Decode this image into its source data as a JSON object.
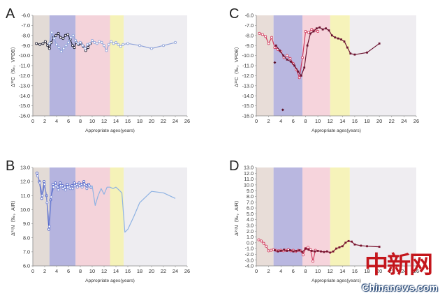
{
  "watermark": {
    "chinese": "中新网",
    "site": "Chinanews.com"
  },
  "chart_data": [
    {
      "panel": "A",
      "type": "line",
      "xlabel": "Appropriate ages(years)",
      "ylabel": "Δ¹³C（‰，VPDB）",
      "xlim": [
        0,
        26
      ],
      "ylim": [
        -16,
        -6
      ],
      "xticks": [
        0,
        2,
        4,
        6,
        8,
        10,
        12,
        14,
        16,
        18,
        20,
        22,
        24,
        26
      ],
      "yticks": [
        -16,
        -15,
        -14,
        -13,
        -12,
        -11,
        -10,
        -9,
        -8,
        -7,
        -6
      ],
      "bands": [
        {
          "x0": 0,
          "x1": 2.8,
          "color": "#e3dbd6"
        },
        {
          "x0": 2.8,
          "x1": 7.2,
          "color": "#b5b4df"
        },
        {
          "x0": 7.2,
          "x1": 13,
          "color": "#f4d3da"
        },
        {
          "x0": 13,
          "x1": 15.3,
          "color": "#f5f2b8"
        },
        {
          "x0": 15.3,
          "x1": 26,
          "color": "#eeedf1"
        }
      ],
      "series": [
        {
          "color": "#1a1a2e",
          "marker": "o",
          "x": [
            0.6,
            1.2,
            1.7,
            2.1,
            2.5,
            2.8,
            3.1,
            3.5,
            3.9,
            4.3,
            4.7,
            5.1,
            5.5,
            5.9,
            6.3,
            6.7,
            7.0,
            7.3,
            7.7,
            8.1,
            8.5,
            8.9,
            9.3,
            9.7
          ],
          "y": [
            -8.8,
            -8.9,
            -8.8,
            -8.6,
            -9.0,
            -9.3,
            -8.7,
            -8.2,
            -8.0,
            -7.8,
            -8.2,
            -8.3,
            -8.0,
            -7.9,
            -8.4,
            -9.0,
            -9.2,
            -8.7,
            -8.9,
            -8.8,
            -9.1,
            -9.5,
            -9.2,
            -8.8
          ]
        },
        {
          "color": "#8fa3d9",
          "marker": "o",
          "x": [
            2.8,
            3.2,
            3.6,
            4.0,
            4.4,
            4.8,
            5.2,
            5.6,
            6.0,
            6.4,
            6.8,
            7.2,
            7.6,
            8.0,
            8.4,
            8.8,
            9.2,
            9.6,
            10.0,
            10.4,
            10.8,
            11.2,
            11.6,
            12.0,
            12.4,
            12.8,
            13.2,
            13.6,
            14.0,
            14.4,
            14.8,
            15.2,
            16,
            18,
            20,
            22,
            24
          ],
          "y": [
            -8.8,
            -7.7,
            -8.3,
            -8.9,
            -9.2,
            -9.6,
            -9.3,
            -9.0,
            -8.7,
            -8.2,
            -8.0,
            -8.5,
            -8.8,
            -8.7,
            -9.0,
            -9.3,
            -8.9,
            -8.8,
            -8.5,
            -8.7,
            -8.8,
            -8.6,
            -8.7,
            -9.0,
            -9.5,
            -8.9,
            -8.6,
            -8.8,
            -8.7,
            -8.9,
            -9.1,
            -8.9,
            -8.8,
            -9.0,
            -9.3,
            -9.0,
            -8.7
          ]
        }
      ]
    },
    {
      "panel": "B",
      "type": "line",
      "xlabel": "Appropriate ages(years)",
      "ylabel": "Δ¹⁵N（‰，AIR）",
      "xlim": [
        0,
        26
      ],
      "ylim": [
        6,
        13
      ],
      "xticks": [
        0,
        2,
        4,
        6,
        8,
        10,
        12,
        14,
        16,
        18,
        20,
        22,
        24,
        26
      ],
      "yticks": [
        6.0,
        7.0,
        8.0,
        9.0,
        10.0,
        11.0,
        12.0,
        13.0
      ],
      "bands": [
        {
          "x0": 0,
          "x1": 2.8,
          "color": "#e3dbd6"
        },
        {
          "x0": 2.8,
          "x1": 7.2,
          "color": "#b5b4df"
        },
        {
          "x0": 7.2,
          "x1": 13,
          "color": "#f4d3da"
        },
        {
          "x0": 13,
          "x1": 15.3,
          "color": "#f5f2b8"
        },
        {
          "x0": 15.3,
          "x1": 26,
          "color": "#eeedf1"
        }
      ],
      "series": [
        {
          "color": "#4a5fc7",
          "marker": "o",
          "x": [
            0.7,
            1.1,
            1.5,
            1.9,
            2.3,
            2.7,
            3.0,
            3.4,
            3.8,
            4.2,
            4.6,
            5.0,
            5.4,
            5.8,
            6.2,
            6.6,
            7.0,
            7.4,
            7.8,
            8.2,
            8.6,
            9.0,
            9.4,
            9.8
          ],
          "y": [
            12.6,
            12.0,
            10.8,
            12.0,
            11.0,
            8.6,
            10.7,
            11.8,
            11.9,
            11.6,
            11.9,
            11.7,
            11.6,
            11.8,
            11.6,
            11.7,
            11.9,
            11.8,
            11.9,
            11.8,
            12.0,
            11.7,
            11.8,
            11.6
          ]
        },
        {
          "color": "#7e8dd6",
          "marker": "o",
          "x": [
            0.8,
            1.2,
            1.6,
            2.0,
            2.4,
            2.8,
            3.1,
            3.5,
            3.9,
            4.3,
            4.7,
            5.1,
            5.5,
            5.9,
            6.3,
            6.7,
            7.1,
            7.5,
            7.9,
            8.3,
            8.7,
            9.1,
            9.5
          ],
          "y": [
            12.4,
            11.9,
            11.0,
            11.8,
            10.5,
            8.8,
            10.9,
            11.6,
            11.7,
            11.4,
            11.7,
            11.5,
            11.4,
            11.6,
            11.5,
            11.5,
            11.7,
            11.6,
            11.7,
            11.6,
            11.8,
            11.5,
            11.7
          ]
        },
        {
          "color": "#8fb3e3",
          "marker": "none",
          "x": [
            9.5,
            10,
            10.5,
            11,
            11.5,
            12,
            12.5,
            13,
            13.5,
            14,
            14.5,
            15,
            15.5,
            16,
            17,
            18,
            20,
            22,
            24
          ],
          "y": [
            11.6,
            11.7,
            10.3,
            11.0,
            11.5,
            11.1,
            11.6,
            11.6,
            11.5,
            11.6,
            11.4,
            11.2,
            8.4,
            8.6,
            9.5,
            10.5,
            11.3,
            11.2,
            10.8
          ]
        }
      ]
    },
    {
      "panel": "C",
      "type": "line",
      "xlabel": "Appropriate ages(years)",
      "ylabel": "Δ¹³C（‰，VPDB）",
      "xlim": [
        0,
        26
      ],
      "ylim": [
        -16,
        -6
      ],
      "xticks": [
        0,
        2,
        4,
        6,
        8,
        10,
        12,
        14,
        16,
        18,
        20,
        22,
        24,
        26
      ],
      "yticks": [
        -16,
        -15,
        -14,
        -13,
        -12,
        -11,
        -10,
        -9,
        -8,
        -7,
        -6
      ],
      "bands": [
        {
          "x0": 0,
          "x1": 2.8,
          "color": "#e8ddd8"
        },
        {
          "x0": 2.8,
          "x1": 7.5,
          "color": "#b9b7e0"
        },
        {
          "x0": 7.5,
          "x1": 12,
          "color": "#f6d4dc"
        },
        {
          "x0": 12,
          "x1": 15.2,
          "color": "#f6f3ba"
        },
        {
          "x0": 15.2,
          "x1": 26,
          "color": "#efedf1"
        }
      ],
      "series": [
        {
          "color": "#d23b5e",
          "marker": "o",
          "x": [
            0.5,
            1.0,
            1.5,
            2.0,
            2.5,
            3.0,
            3.5,
            4.0,
            4.5,
            5.0,
            5.5,
            6.0,
            6.5,
            7.0,
            7.5,
            8.0,
            8.5,
            9.0,
            9.5,
            10.0
          ],
          "y": [
            -7.8,
            -7.9,
            -8.1,
            -8.8,
            -8.2,
            -9.2,
            -9.4,
            -9.6,
            -10.2,
            -10.0,
            -10.3,
            -10.8,
            -11.4,
            -12.2,
            -10.2,
            -7.6,
            -7.7,
            -7.4,
            -7.5,
            -7.6
          ]
        },
        {
          "color": "#6b1230",
          "marker": "s",
          "x": [
            3.2,
            3.8,
            4.4,
            5.0,
            5.6,
            6.2,
            6.8,
            7.3,
            7.8,
            8.3,
            8.8,
            9.3,
            9.8,
            10.3,
            10.8,
            11.3,
            11.8,
            12.3,
            12.8,
            13.3,
            13.8,
            14.3,
            14.8,
            15.3,
            16,
            18,
            20
          ],
          "y": [
            -9.0,
            -9.5,
            -10.0,
            -10.4,
            -10.6,
            -11.0,
            -11.6,
            -12.0,
            -11.2,
            -9.0,
            -7.8,
            -7.6,
            -7.3,
            -7.2,
            -7.4,
            -7.3,
            -7.5,
            -8.0,
            -8.2,
            -8.3,
            -8.4,
            -8.6,
            -9.2,
            -9.8,
            -9.9,
            -9.7,
            -8.8
          ]
        }
      ],
      "outliers": [
        {
          "x": 3.0,
          "y": -10.7
        },
        {
          "x": 4.3,
          "y": -15.4
        }
      ]
    },
    {
      "panel": "D",
      "type": "line",
      "xlabel": "Appropriate ages(years)",
      "ylabel": "Δ¹⁵N（‰，AIR）",
      "xlim": [
        0,
        26
      ],
      "ylim": [
        -4,
        13
      ],
      "xticks": [
        0,
        2,
        4,
        6,
        8,
        10,
        12,
        14,
        16,
        18,
        20,
        22,
        24,
        26
      ],
      "yticks": [
        -4.0,
        -3.0,
        -2.0,
        -1.0,
        0.0,
        1.0,
        2.0,
        3.0,
        4.0,
        5.0,
        6.0,
        7.0,
        8.0,
        9.0,
        10.0,
        11.0,
        12.0,
        13.0
      ],
      "bands": [
        {
          "x0": 0,
          "x1": 2.8,
          "color": "#e8ddd8"
        },
        {
          "x0": 2.8,
          "x1": 7.5,
          "color": "#b9b7e0"
        },
        {
          "x0": 7.5,
          "x1": 12,
          "color": "#f6d4dc"
        },
        {
          "x0": 12,
          "x1": 15.2,
          "color": "#f6f3ba"
        },
        {
          "x0": 15.2,
          "x1": 26,
          "color": "#efedf1"
        }
      ],
      "series": [
        {
          "color": "#d23b5e",
          "marker": "o",
          "x": [
            0.4,
            0.8,
            1.2,
            1.6,
            2.0,
            2.4,
            2.8,
            3.2,
            3.6,
            4.0,
            4.4,
            4.8,
            5.2,
            5.6,
            6.0,
            6.4,
            6.8,
            7.2,
            7.6,
            8.0,
            8.4,
            8.8,
            9.2,
            9.6
          ],
          "y": [
            0.5,
            0.3,
            -0.1,
            -0.6,
            -1.4,
            -1.3,
            -1.2,
            -1.3,
            -1.4,
            -1.3,
            -1.4,
            -1.3,
            -1.2,
            -1.4,
            -1.3,
            -1.5,
            -1.3,
            -1.4,
            -2.1,
            -1.0,
            -0.8,
            -1.2,
            -3.2,
            -1.3
          ]
        },
        {
          "color": "#7a1430",
          "marker": "s",
          "x": [
            3.0,
            3.5,
            4.0,
            4.5,
            5.0,
            5.5,
            6.0,
            6.5,
            7.0,
            7.5,
            8.0,
            8.5,
            9.0,
            9.5,
            10,
            10.5,
            11,
            11.5,
            12,
            12.5,
            13,
            13.5,
            14,
            14.5,
            15,
            15.5,
            16,
            17,
            18,
            20
          ],
          "y": [
            -1.3,
            -1.5,
            -1.4,
            -1.2,
            -1.4,
            -1.3,
            -1.5,
            -1.4,
            -1.3,
            -1.6,
            -1.0,
            -1.2,
            -1.4,
            -1.5,
            -1.4,
            -1.5,
            -1.6,
            -1.5,
            -1.7,
            -1.5,
            -1.0,
            -0.8,
            -0.6,
            0.0,
            0.3,
            0.2,
            -0.3,
            -0.5,
            -0.6,
            -0.7
          ]
        }
      ]
    }
  ]
}
